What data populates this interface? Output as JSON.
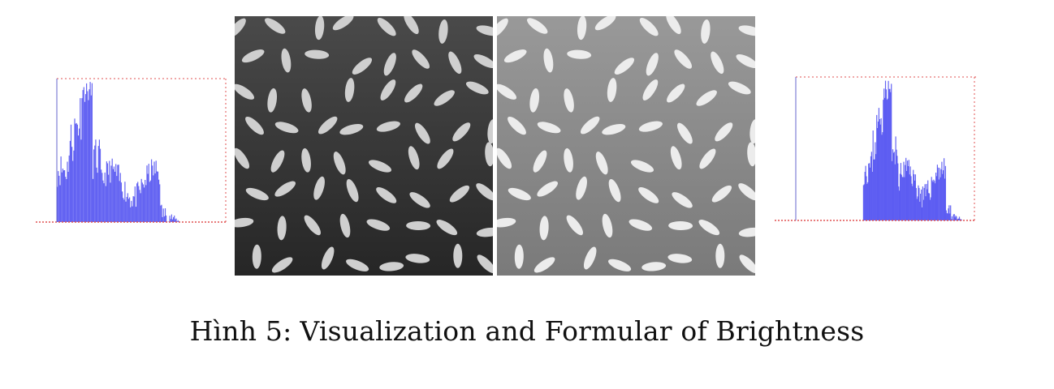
{
  "figure": {
    "caption_label": "Hình 5:",
    "caption_text": "Visualization and Formular of Brightness"
  },
  "colors": {
    "histogram_bar": "#4a4af0",
    "histogram_axis": "#e05050",
    "image_dark_bg": "#3a3a3a",
    "image_bright_bg": "#8c8c8c",
    "grain": "#d8d8d8"
  },
  "panels": [
    {
      "name": "histogram-original",
      "shift": 0
    },
    {
      "name": "rice-image-original",
      "brightness": "original"
    },
    {
      "name": "rice-image-brightened",
      "brightness": "increased"
    },
    {
      "name": "histogram-brightened",
      "shift": 1
    }
  ]
}
